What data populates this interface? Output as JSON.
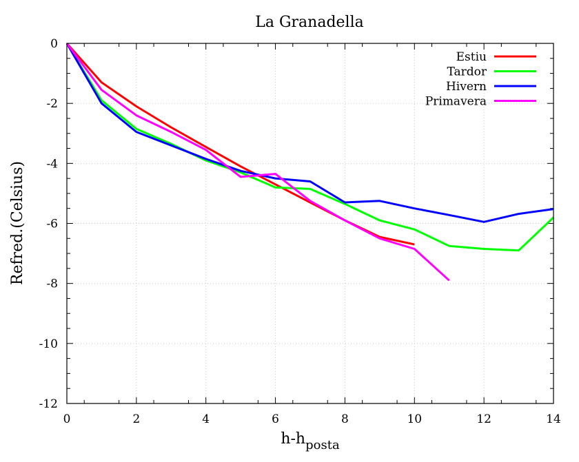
{
  "chart_data": {
    "type": "line",
    "title": "La Granadella",
    "xlabel_main": "h-h",
    "xlabel_sub": "posta",
    "ylabel": "Refred.(Celsius)",
    "xlim": [
      0,
      14
    ],
    "ylim": [
      -12,
      0
    ],
    "xticks": [
      0,
      2,
      4,
      6,
      8,
      10,
      12,
      14
    ],
    "yticks": [
      0,
      -2,
      -4,
      -6,
      -8,
      -10,
      -12
    ],
    "grid": true,
    "legend_position": "top-right",
    "series": [
      {
        "name": "Estiu",
        "color": "#ff0000",
        "x": [
          0,
          1,
          2,
          3,
          4,
          5,
          6,
          7,
          8,
          9,
          10
        ],
        "y": [
          0,
          -1.3,
          -2.1,
          -2.8,
          -3.45,
          -4.1,
          -4.7,
          -5.3,
          -5.9,
          -6.45,
          -6.7
        ]
      },
      {
        "name": "Tardor",
        "color": "#00ff00",
        "x": [
          0,
          1,
          2,
          3,
          4,
          5,
          6,
          7,
          8,
          9,
          10,
          11,
          12,
          13,
          14
        ],
        "y": [
          0,
          -1.9,
          -2.85,
          -3.35,
          -3.9,
          -4.3,
          -4.8,
          -4.85,
          -5.35,
          -5.9,
          -6.2,
          -6.75,
          -6.85,
          -6.9,
          -5.8
        ]
      },
      {
        "name": "Hivern",
        "color": "#0000ff",
        "x": [
          0,
          1,
          2,
          3,
          4,
          5,
          6,
          7,
          8,
          9,
          10,
          11,
          12,
          13,
          14
        ],
        "y": [
          0,
          -2.0,
          -2.95,
          -3.4,
          -3.85,
          -4.25,
          -4.5,
          -4.6,
          -5.3,
          -5.25,
          -5.5,
          -5.72,
          -5.95,
          -5.68,
          -5.52
        ]
      },
      {
        "name": "Primavera",
        "color": "#ff00ff",
        "x": [
          0,
          1,
          2,
          3,
          4,
          5,
          6,
          7,
          8,
          9,
          10,
          11
        ],
        "y": [
          0,
          -1.55,
          -2.4,
          -2.95,
          -3.55,
          -4.45,
          -4.35,
          -5.25,
          -5.9,
          -6.5,
          -6.85,
          -7.9
        ]
      }
    ]
  }
}
